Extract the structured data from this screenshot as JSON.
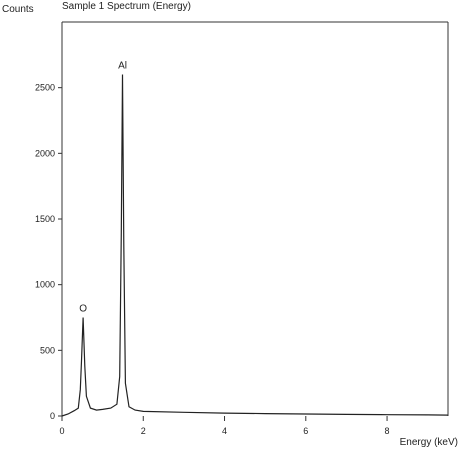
{
  "chart_data": {
    "type": "line",
    "title": "Sample 1 Spectrum (Energy)",
    "xlabel": "Energy (keV)",
    "ylabel": "Counts",
    "xlim": [
      0,
      9.5
    ],
    "ylim": [
      0,
      3000
    ],
    "x_ticks": [
      "0",
      "2",
      "4",
      "6",
      "8"
    ],
    "y_ticks": [
      "0",
      "500",
      "1000",
      "1500",
      "2000",
      "2500"
    ],
    "grid": false,
    "peaks": [
      {
        "label": "O",
        "x": 0.52,
        "y": 750
      },
      {
        "label": "Al",
        "x": 1.49,
        "y": 2600
      }
    ],
    "series": [
      {
        "x": [
          0.0,
          0.15,
          0.3,
          0.4,
          0.45,
          0.48,
          0.52,
          0.56,
          0.6,
          0.7,
          0.85,
          1.0,
          1.2,
          1.35,
          1.42,
          1.46,
          1.49,
          1.52,
          1.56,
          1.65,
          1.8,
          2.0,
          3.0,
          4.0,
          5.0,
          6.0,
          7.0,
          8.0,
          9.0,
          9.5
        ],
        "y": [
          0,
          15,
          40,
          60,
          200,
          420,
          750,
          380,
          150,
          60,
          45,
          50,
          60,
          90,
          300,
          1400,
          2600,
          1300,
          250,
          70,
          45,
          35,
          28,
          22,
          18,
          15,
          12,
          10,
          8,
          7
        ]
      }
    ]
  }
}
